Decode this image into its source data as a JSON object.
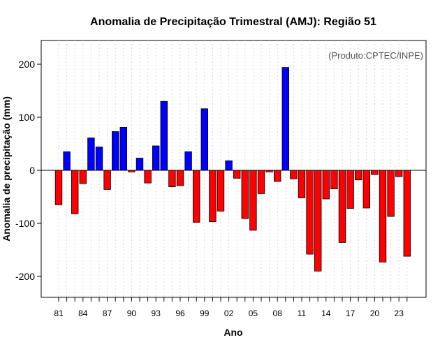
{
  "chart_data": {
    "type": "bar",
    "title": "Anomalia de Precipitação Trimestral (AMJ): Região 51",
    "xlabel": "Ano",
    "ylabel": "Anomalia de precipitação (mm)",
    "credit": "(Produto:CPTEC/INPE)",
    "ylim": [
      -240,
      245
    ],
    "yticks": [
      -200,
      -100,
      0,
      100,
      200
    ],
    "positive_color": "#0000ff",
    "negative_color": "#ff0000",
    "categories": [
      "1981",
      "1982",
      "1983",
      "1984",
      "1985",
      "1986",
      "1987",
      "1988",
      "1989",
      "1990",
      "1991",
      "1992",
      "1993",
      "1994",
      "1995",
      "1996",
      "1997",
      "1998",
      "1999",
      "2000",
      "2001",
      "2002",
      "2003",
      "2004",
      "2005",
      "2006",
      "2007",
      "2008",
      "2009",
      "2010",
      "2011",
      "2012",
      "2013",
      "2014",
      "2015",
      "2016",
      "2017",
      "2018",
      "2019",
      "2020",
      "2021",
      "2022",
      "2023",
      "2024"
    ],
    "xtick_labels": [
      {
        "index": 0,
        "label": "81"
      },
      {
        "index": 3,
        "label": "84"
      },
      {
        "index": 6,
        "label": "87"
      },
      {
        "index": 9,
        "label": "90"
      },
      {
        "index": 12,
        "label": "93"
      },
      {
        "index": 15,
        "label": "96"
      },
      {
        "index": 18,
        "label": "99"
      },
      {
        "index": 21,
        "label": "02"
      },
      {
        "index": 24,
        "label": "05"
      },
      {
        "index": 27,
        "label": "08"
      },
      {
        "index": 30,
        "label": "11"
      },
      {
        "index": 33,
        "label": "14"
      },
      {
        "index": 36,
        "label": "17"
      },
      {
        "index": 39,
        "label": "20"
      },
      {
        "index": 42,
        "label": "23"
      }
    ],
    "values": [
      -65,
      35,
      -82,
      -25,
      61,
      44,
      -36,
      73,
      81,
      -3,
      23,
      -24,
      46,
      130,
      -31,
      -29,
      35,
      -98,
      116,
      -97,
      -77,
      18,
      -15,
      -91,
      -113,
      -44,
      -3,
      -21,
      194,
      -16,
      -52,
      -158,
      -190,
      -54,
      -35,
      -136,
      -72,
      -18,
      -71,
      -8,
      -173,
      -87,
      -12,
      -162
    ]
  }
}
